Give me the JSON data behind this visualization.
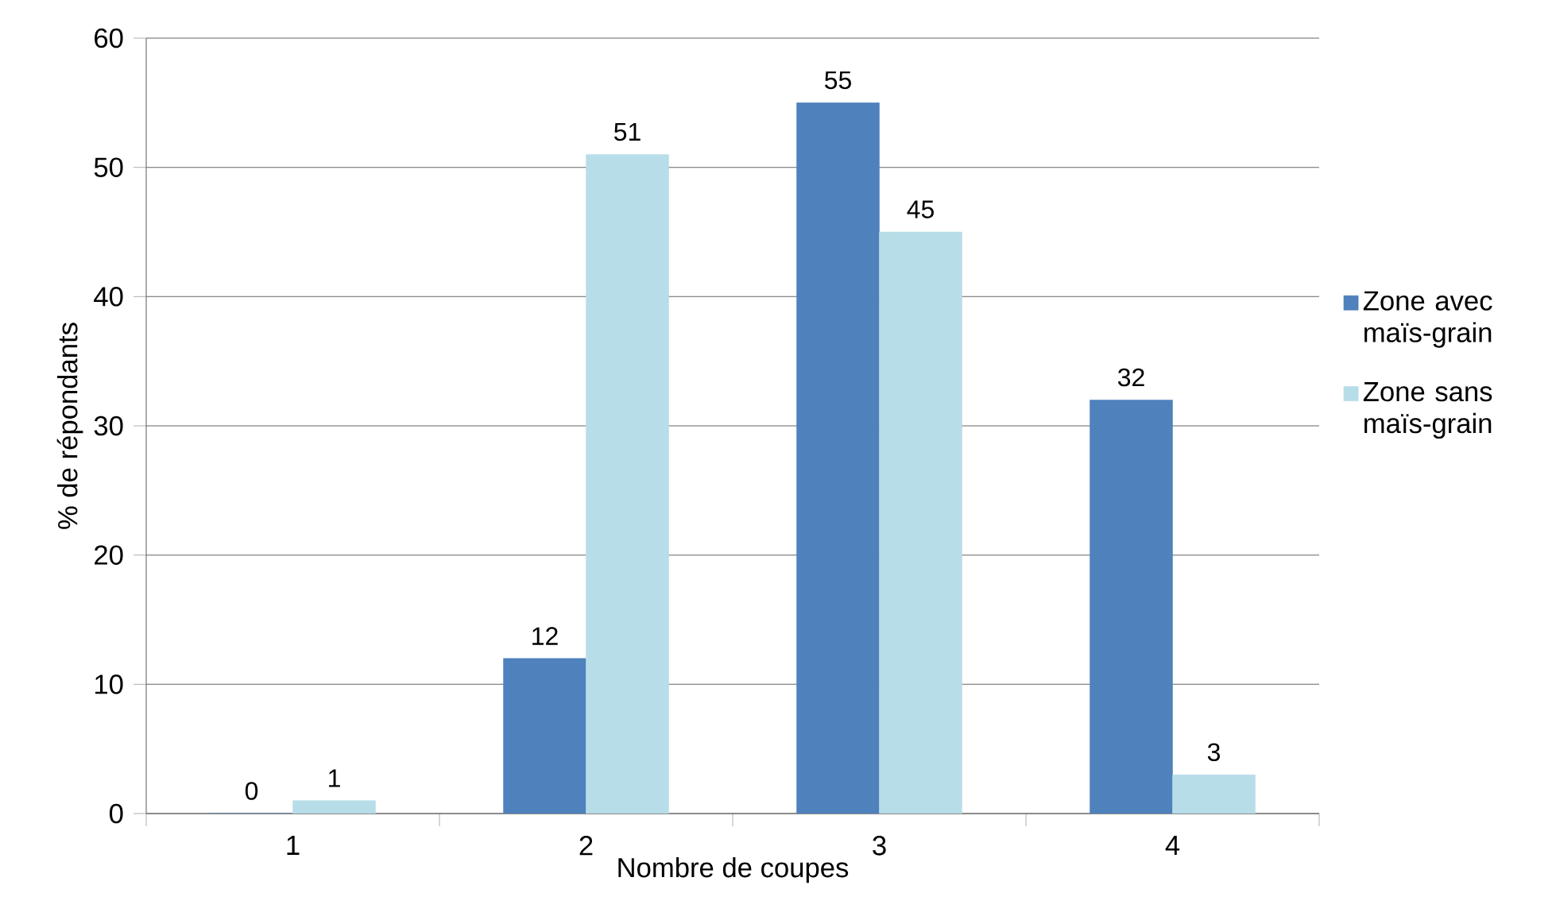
{
  "chart_data": {
    "type": "bar",
    "xlabel": "Nombre de coupes",
    "ylabel": "% de répondants",
    "categories": [
      "1",
      "2",
      "3",
      "4"
    ],
    "series": [
      {
        "name": "Zone avec maïs-grain",
        "color": "#4f81bd",
        "values": [
          0,
          12,
          55,
          32
        ]
      },
      {
        "name": "Zone sans maïs-grain",
        "color": "#b7dde8",
        "values": [
          1,
          51,
          45,
          3
        ]
      }
    ],
    "ylim": [
      0,
      60
    ],
    "yticks": [
      0,
      10,
      20,
      30,
      40,
      50,
      60
    ],
    "grid": "y",
    "legend": "right",
    "data_labels": true
  }
}
